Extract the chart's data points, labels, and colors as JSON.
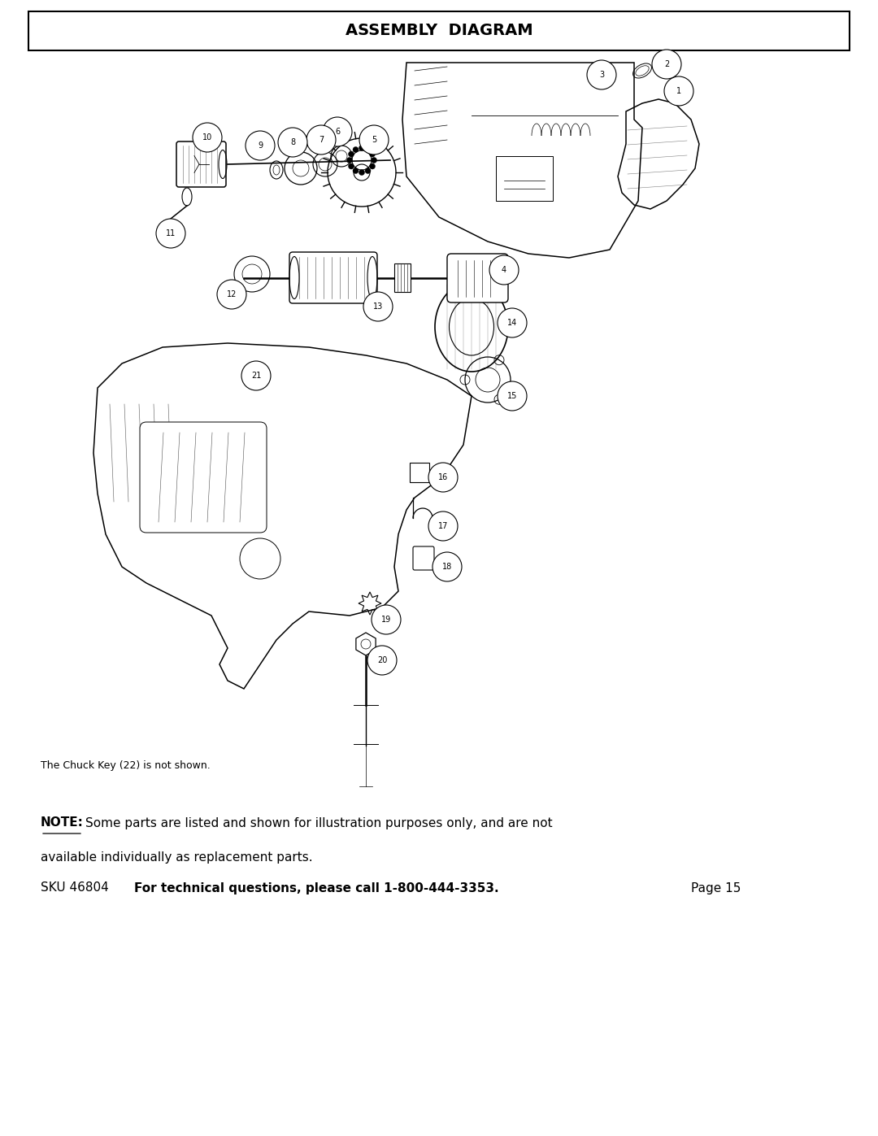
{
  "title": "ASSEMBLY  DIAGRAM",
  "title_fontsize": 14,
  "title_fontweight": "bold",
  "page_bg": "#ffffff",
  "border_color": "#000000",
  "text_color": "#000000",
  "note_text_line1": "Some parts are listed and shown for illustration purposes only, and are not",
  "note_text_line2": "available individually as replacement parts.",
  "note_bold": "NOTE:",
  "footer_sku": "SKU 46804",
  "footer_bold": "For technical questions, please call 1-800-444-3353.",
  "footer_page": "Page 15",
  "chuck_key_note": "The Chuck Key (22) is not shown."
}
